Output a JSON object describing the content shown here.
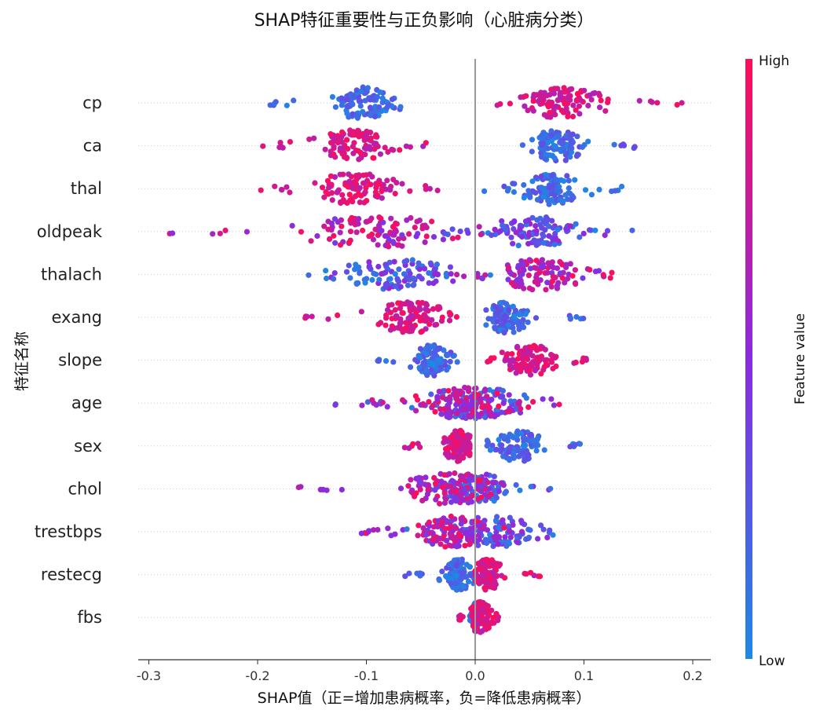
{
  "chart_data": {
    "type": "scatter",
    "subtype": "shap-beeswarm",
    "title": "SHAP特征重要性与正负影响（心脏病分类）",
    "xlabel": "SHAP值（正=增加患病概率，负=降低患病概率）",
    "ylabel": "特征名称",
    "xlim": [
      -0.31,
      0.215
    ],
    "xticks": [
      -0.3,
      -0.2,
      -0.1,
      0.0,
      0.1,
      0.2
    ],
    "xtick_labels": [
      "-0.3",
      "-0.2",
      "-0.1",
      "0.0",
      "0.1",
      "0.2"
    ],
    "zero_line": true,
    "grid": false,
    "colorbar": {
      "label": "Feature value",
      "high_label": "High",
      "low_label": "Low",
      "high_color": "#ff0d57",
      "mid_color": "#8a2be2",
      "low_color": "#1e88e5"
    },
    "features": [
      {
        "name": "cp",
        "low_range": [
          -0.2,
          -0.055
        ],
        "low_center": -0.105,
        "high_range": [
          0.015,
          0.19
        ],
        "high_center": 0.08,
        "split": "clear"
      },
      {
        "name": "ca",
        "low_range": [
          0.04,
          0.15
        ],
        "low_center": 0.075,
        "high_range": [
          -0.21,
          -0.045
        ],
        "high_center": -0.11,
        "split": "clear"
      },
      {
        "name": "thal",
        "low_range": [
          0.005,
          0.135
        ],
        "low_center": 0.07,
        "high_range": [
          -0.2,
          -0.03
        ],
        "high_center": -0.11,
        "split": "clear"
      },
      {
        "name": "oldpeak",
        "low_range": [
          -0.03,
          0.15
        ],
        "low_center": 0.055,
        "high_range": [
          -0.285,
          0.02
        ],
        "high_center": -0.09,
        "split": "gradient"
      },
      {
        "name": "thalach",
        "low_range": [
          -0.17,
          0.05
        ],
        "low_center": -0.07,
        "high_range": [
          -0.04,
          0.13
        ],
        "high_center": 0.06,
        "split": "gradient"
      },
      {
        "name": "exang",
        "low_range": [
          0.01,
          0.1
        ],
        "low_center": 0.03,
        "high_range": [
          -0.16,
          -0.01
        ],
        "high_center": -0.06,
        "split": "clear"
      },
      {
        "name": "slope",
        "low_range": [
          -0.09,
          -0.015
        ],
        "low_center": -0.04,
        "high_range": [
          0.005,
          0.11
        ],
        "high_center": 0.05,
        "split": "clear"
      },
      {
        "name": "age",
        "low_range": [
          -0.13,
          0.085
        ],
        "low_center": 0.0,
        "high_range": [
          -0.12,
          0.08
        ],
        "high_center": -0.01,
        "split": "mixed"
      },
      {
        "name": "sex",
        "low_range": [
          0.01,
          0.105
        ],
        "low_center": 0.04,
        "high_range": [
          -0.065,
          -0.005
        ],
        "high_center": -0.015,
        "split": "clear"
      },
      {
        "name": "chol",
        "low_range": [
          -0.06,
          0.07
        ],
        "low_center": 0.0,
        "high_range": [
          -0.165,
          0.03
        ],
        "high_center": -0.02,
        "split": "mixed"
      },
      {
        "name": "trestbps",
        "low_range": [
          -0.1,
          0.09
        ],
        "low_center": 0.015,
        "high_range": [
          -0.115,
          0.04
        ],
        "high_center": -0.02,
        "split": "mixed"
      },
      {
        "name": "restecg",
        "low_range": [
          -0.065,
          0.0
        ],
        "low_center": -0.015,
        "high_range": [
          0.0,
          0.06
        ],
        "high_center": 0.012,
        "split": "clear"
      },
      {
        "name": "fbs",
        "low_range": [
          -0.005,
          0.005
        ],
        "low_center": 0.0,
        "high_range": [
          -0.02,
          0.025
        ],
        "high_center": 0.005,
        "split": "clear"
      }
    ]
  }
}
